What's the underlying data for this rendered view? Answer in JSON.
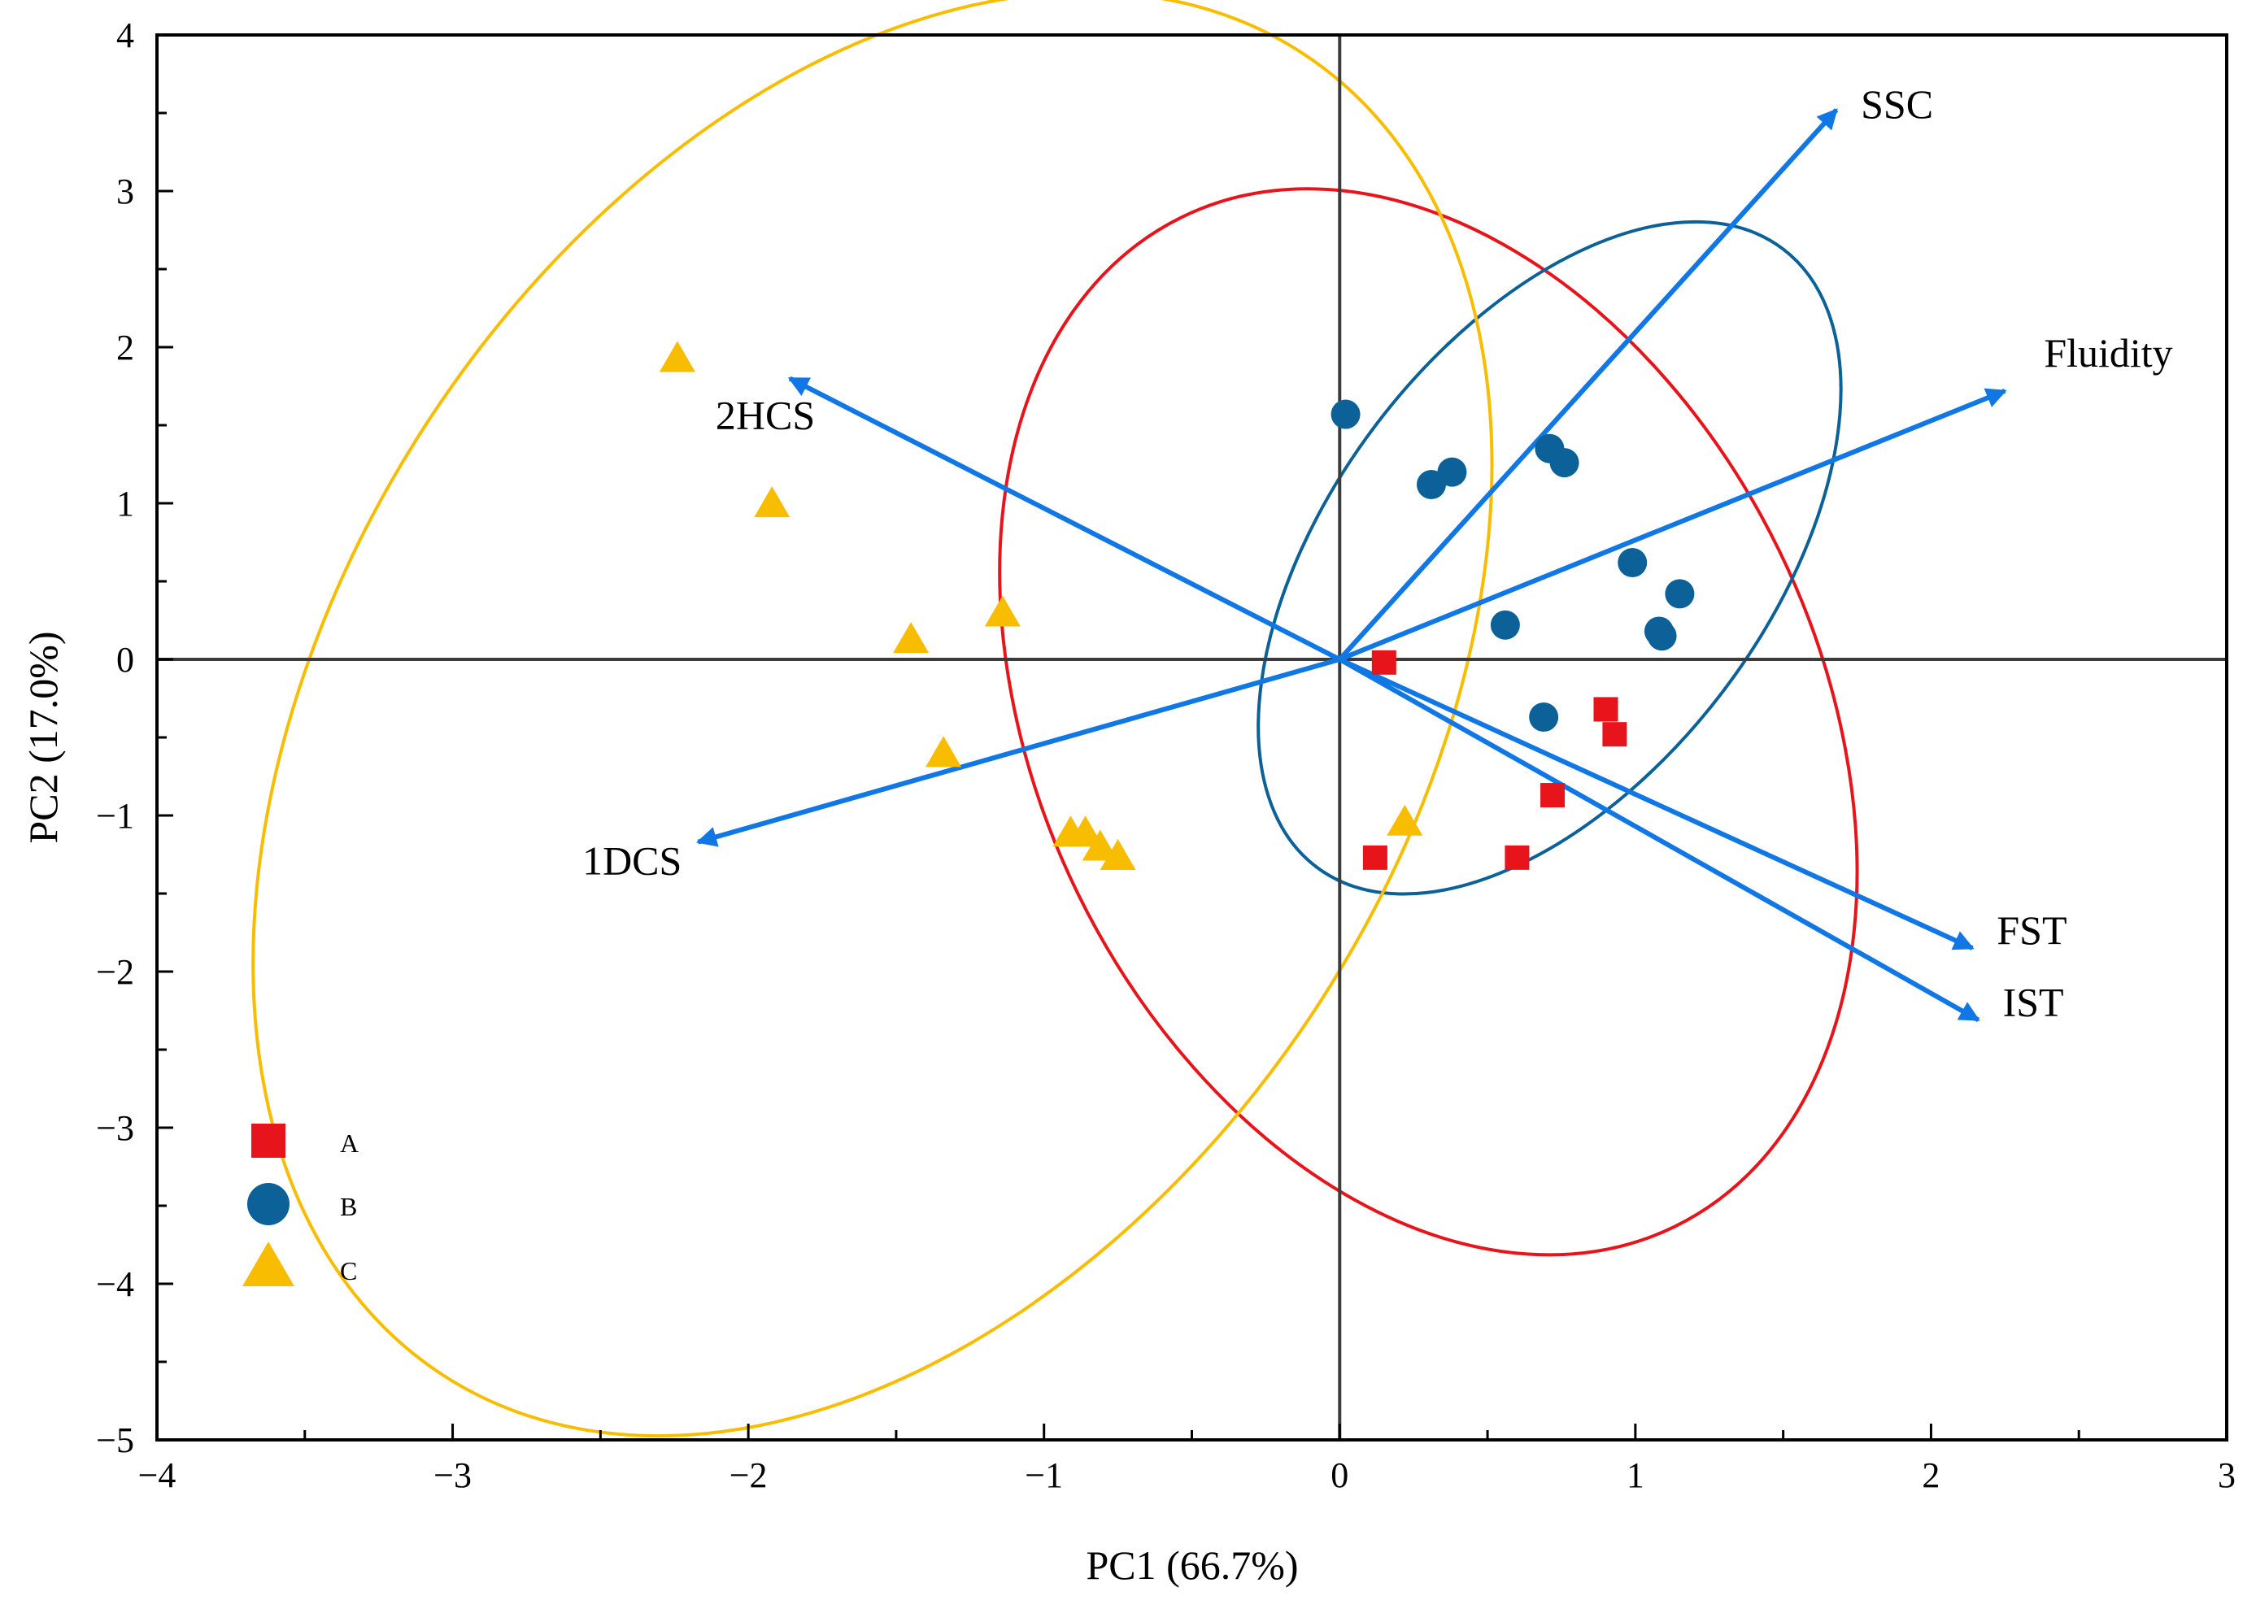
{
  "chart_data": {
    "type": "scatter",
    "subtype": "pca-biplot",
    "title": "",
    "xlabel": "PC1 (66.7%)",
    "ylabel": "PC2 (17.0%)",
    "xlim": [
      -4,
      3
    ],
    "ylim": [
      -5,
      4
    ],
    "xticks": [
      -4,
      -3,
      -2,
      -1,
      0,
      1,
      2,
      3
    ],
    "xtick_labels": [
      "−4",
      "−3",
      "−2",
      "−1",
      "0",
      "1",
      "2",
      "3"
    ],
    "yticks": [
      4,
      3,
      2,
      1,
      0,
      -1,
      -2,
      -3,
      -4,
      -5
    ],
    "ytick_labels": [
      "4",
      "3",
      "2",
      "1",
      "0",
      "−1",
      "−2",
      "−3",
      "−4",
      "−5"
    ],
    "grid": false,
    "legend_position": "bottom-left",
    "series": [
      {
        "name": "A",
        "marker": "square",
        "color": "#e8141b",
        "points": [
          [
            0.15,
            -0.02
          ],
          [
            0.9,
            -0.32
          ],
          [
            0.93,
            -0.48
          ],
          [
            0.72,
            -0.87
          ],
          [
            0.12,
            -1.27
          ],
          [
            0.6,
            -1.27
          ]
        ],
        "ellipse": {
          "center": [
            0.3,
            -0.4
          ],
          "semi_axes": [
            1.9,
            2.5
          ],
          "rotation_deg": 64
        }
      },
      {
        "name": "B",
        "marker": "circle",
        "color": "#0c6199",
        "points": [
          [
            0.02,
            1.57
          ],
          [
            0.31,
            1.12
          ],
          [
            0.38,
            1.2
          ],
          [
            0.71,
            1.35
          ],
          [
            0.76,
            1.26
          ],
          [
            0.99,
            0.62
          ],
          [
            1.15,
            0.42
          ],
          [
            1.08,
            0.18
          ],
          [
            1.09,
            0.15
          ],
          [
            0.56,
            0.22
          ],
          [
            0.69,
            -0.37
          ]
        ],
        "ellipse": {
          "center": [
            0.71,
            0.65
          ],
          "semi_axes": [
            0.74,
            2.48
          ],
          "rotation_deg": 37
        }
      },
      {
        "name": "C",
        "marker": "triangle",
        "color": "#f8bd00",
        "points": [
          [
            -2.24,
            1.92
          ],
          [
            -1.92,
            0.99
          ],
          [
            -1.45,
            0.12
          ],
          [
            -1.14,
            0.29
          ],
          [
            -1.34,
            -0.61
          ],
          [
            -0.91,
            -1.12
          ],
          [
            -0.86,
            -1.12
          ],
          [
            -0.81,
            -1.21
          ],
          [
            -0.75,
            -1.27
          ],
          [
            0.22,
            -1.05
          ]
        ],
        "ellipse": {
          "center": [
            -1.58,
            -0.35
          ],
          "semi_axes": [
            1.8,
            5.05
          ],
          "rotation_deg": 33
        }
      }
    ],
    "loadings": [
      {
        "label": "SSC",
        "x": 1.68,
        "y": 3.52
      },
      {
        "label": "Fluidity",
        "x": 2.25,
        "y": 1.72
      },
      {
        "label": "2HCS",
        "x": -1.86,
        "y": 1.8
      },
      {
        "label": "1DCS",
        "x": -2.17,
        "y": -1.17
      },
      {
        "label": "FST",
        "x": 2.14,
        "y": -1.85
      },
      {
        "label": "IST",
        "x": 2.16,
        "y": -2.31
      }
    ],
    "loading_color": "#1177e5",
    "axis_color": "#3c3c3c"
  }
}
